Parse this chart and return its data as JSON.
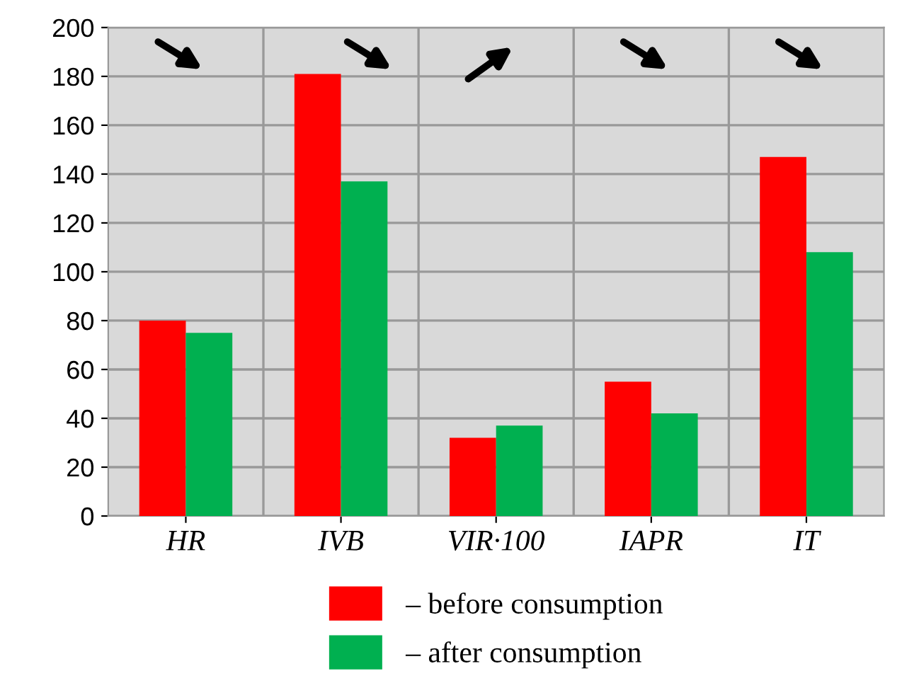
{
  "chart_data": {
    "type": "bar",
    "categories": [
      "HR",
      "IVB",
      "VIR·100",
      "IAPR",
      "IT"
    ],
    "series": [
      {
        "name": "– before consumption",
        "color": "#ff0000",
        "values": [
          80,
          181,
          32,
          55,
          147
        ]
      },
      {
        "name": "– after consumption",
        "color": "#00b050",
        "values": [
          75,
          137,
          37,
          42,
          108
        ]
      }
    ],
    "ylim": [
      0,
      200
    ],
    "yticks": [
      0,
      20,
      40,
      60,
      80,
      100,
      120,
      140,
      160,
      180,
      200
    ],
    "grid": true,
    "legend": "bottom"
  }
}
